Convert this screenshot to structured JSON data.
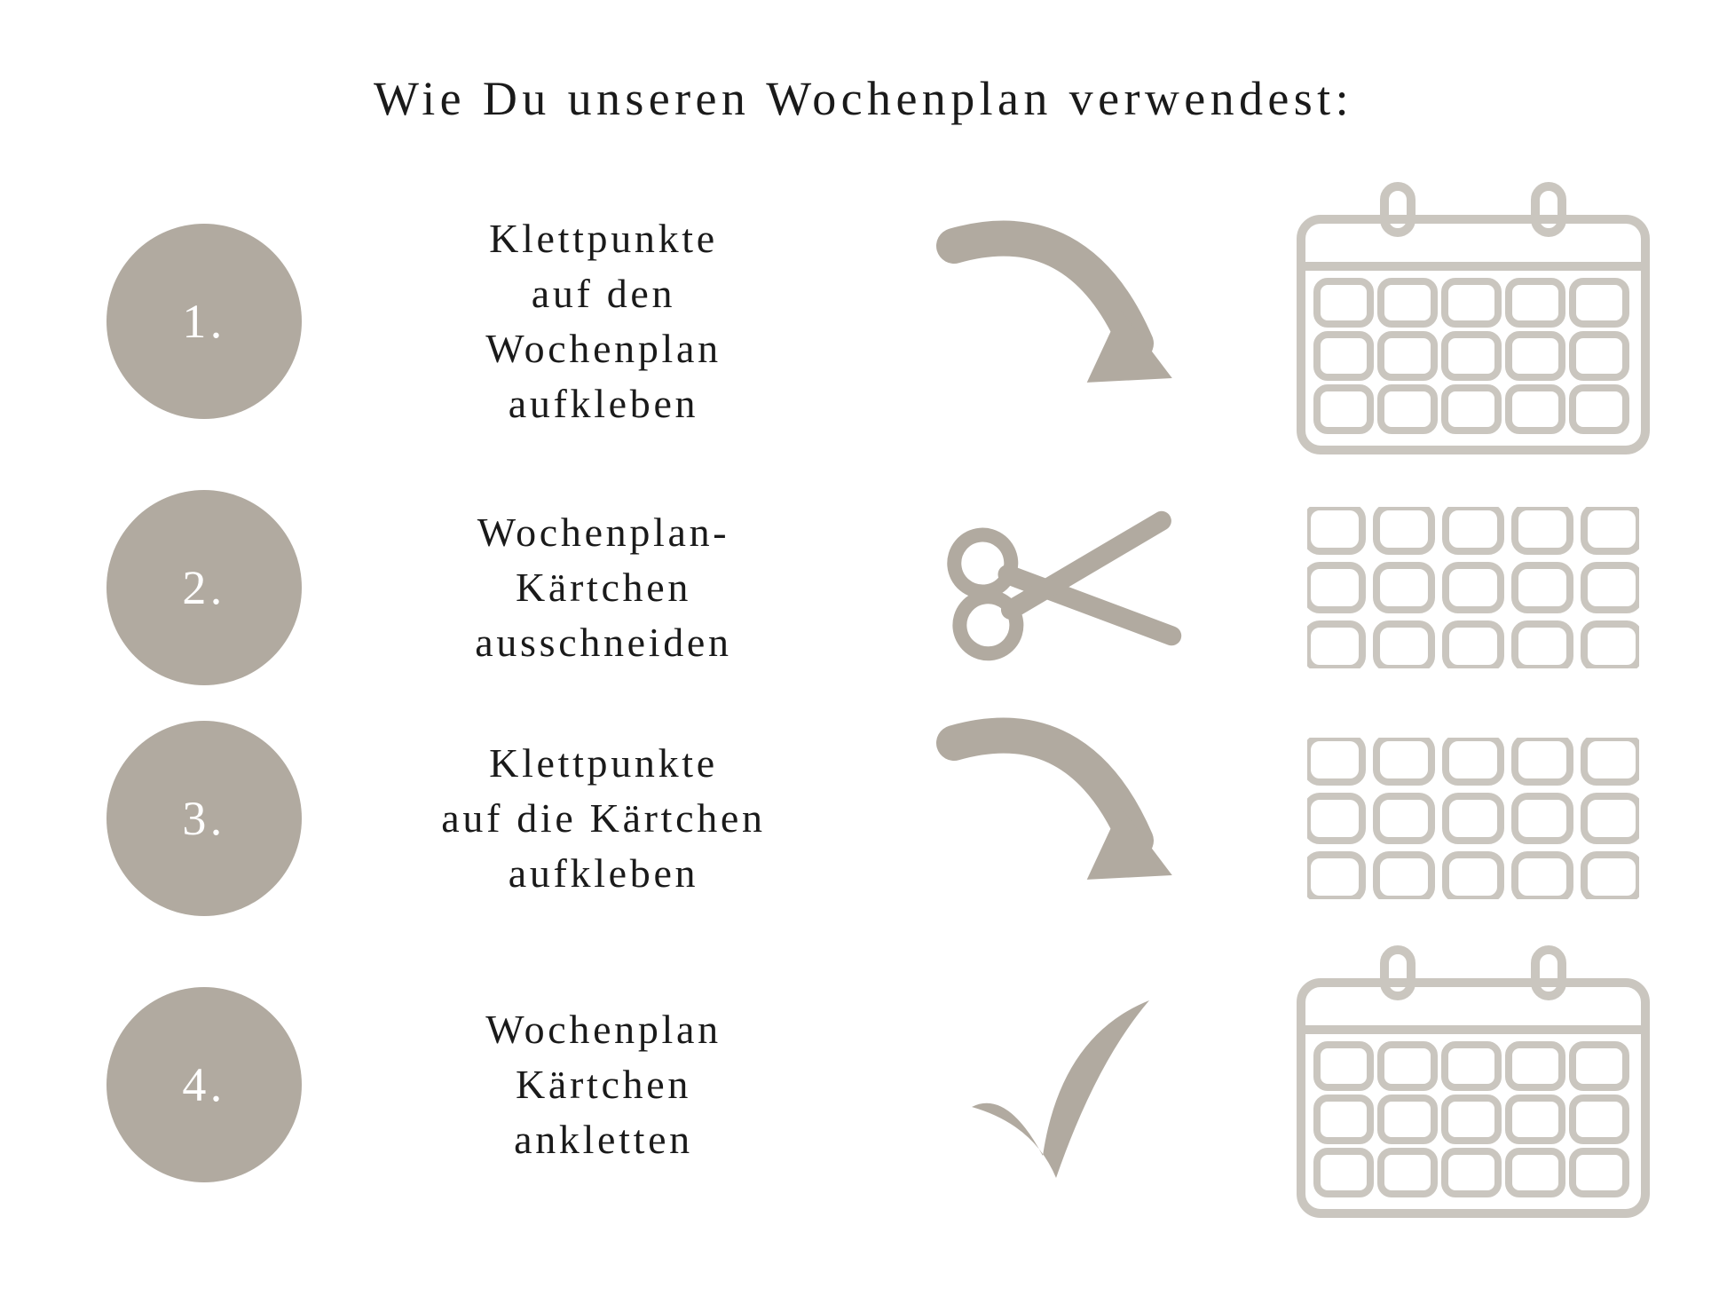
{
  "title": "Wie Du unseren Wochenplan verwendest:",
  "colors": {
    "accent_fill": "#b1aaa0",
    "icon_outline": "#cac6bf",
    "text": "#1a1a1a",
    "circle_text": "#ffffff",
    "background": "#ffffff"
  },
  "steps": [
    {
      "num": "1.",
      "lines": [
        "Klettpunkte",
        "auf den",
        "Wochenplan",
        "aufkleben"
      ],
      "action_icon": "arrow",
      "result_icon": "calendar"
    },
    {
      "num": "2.",
      "lines": [
        "Wochenplan-",
        "Kärtchen",
        "ausschneiden"
      ],
      "action_icon": "scissors",
      "result_icon": "cards-grid"
    },
    {
      "num": "3.",
      "lines": [
        "Klettpunkte",
        "auf die Kärtchen",
        "aufkleben"
      ],
      "action_icon": "arrow",
      "result_icon": "cards-grid"
    },
    {
      "num": "4.",
      "lines": [
        "Wochenplan",
        "Kärtchen",
        "ankletten"
      ],
      "action_icon": "check",
      "result_icon": "calendar"
    }
  ],
  "typography": {
    "title_fontsize": 54,
    "step_fontsize": 46,
    "number_fontsize": 54
  },
  "layout": {
    "circle_diameter": 220,
    "columns": [
      "circle 300px",
      "text 560px",
      "action-icon 430px",
      "result-icon 460px"
    ],
    "rows": 4
  },
  "icons": {
    "arrow": {
      "type": "curved-arrow",
      "fill": "#b1aaa0"
    },
    "scissors": {
      "type": "scissors",
      "fill": "#b1aaa0"
    },
    "check": {
      "type": "checkmark",
      "fill": "#b1aaa0"
    },
    "calendar": {
      "type": "calendar",
      "stroke": "#cac6bf",
      "rows": 3,
      "cols": 5
    },
    "cards-grid": {
      "type": "rounded-squares-grid",
      "stroke": "#cac6bf",
      "rows": 3,
      "cols": 5
    }
  }
}
